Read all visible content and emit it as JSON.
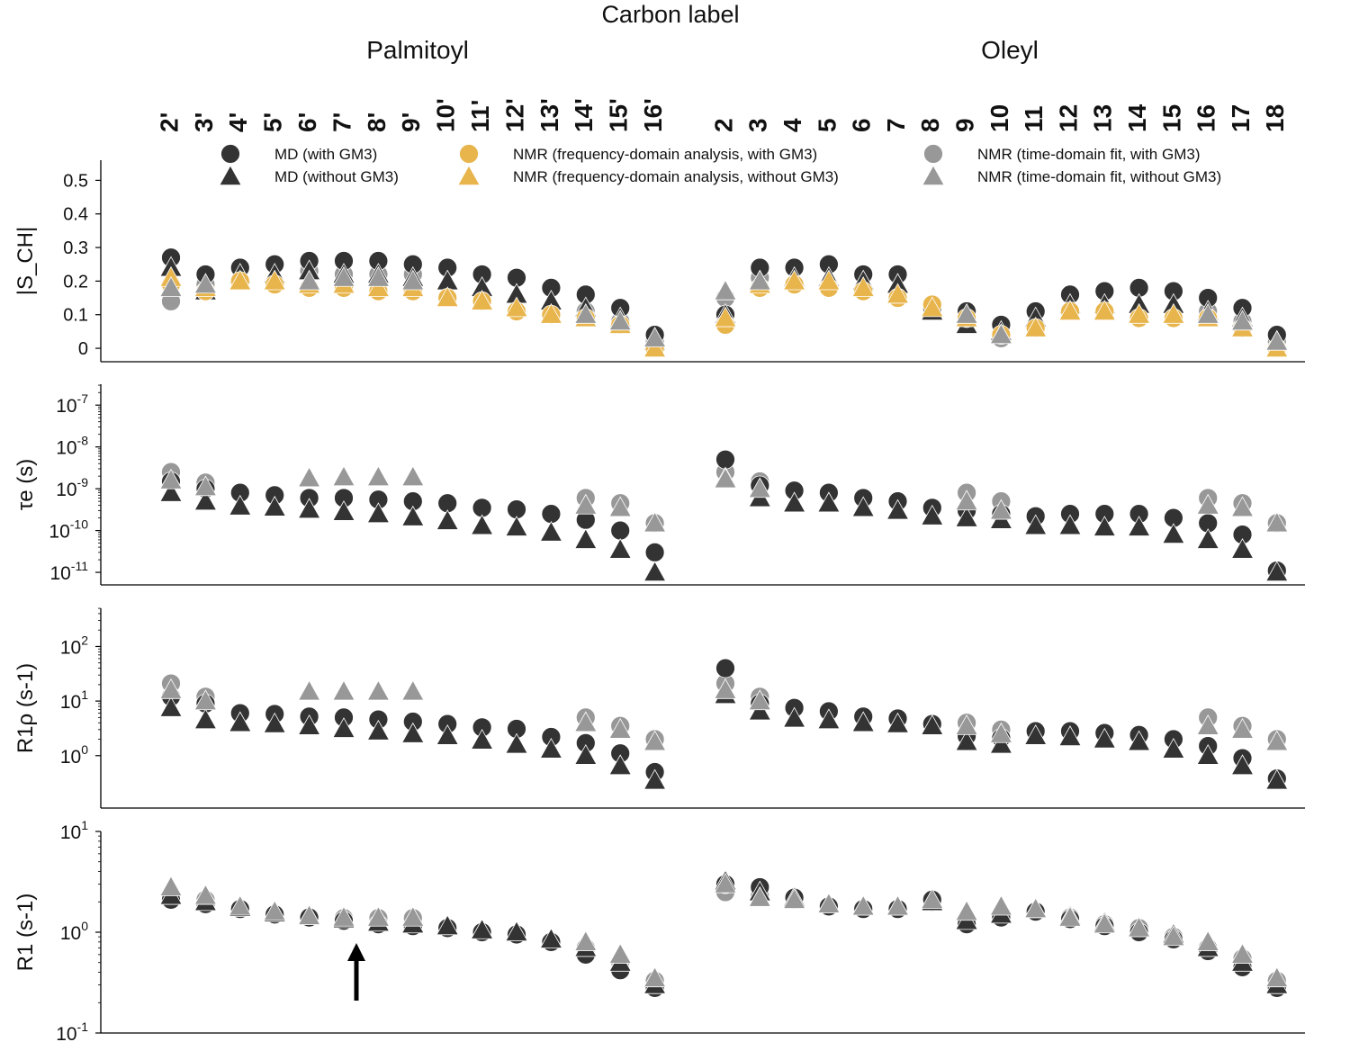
{
  "chart_data": {
    "type": "scatter",
    "top_title": "Carbon label",
    "group_titles": [
      "Palmitoyl",
      "Oleyl"
    ],
    "categories": {
      "palmitoyl": [
        "2'",
        "3'",
        "4'",
        "5'",
        "6'",
        "7'",
        "8'",
        "9'",
        "10'",
        "11'",
        "12'",
        "13'",
        "14'",
        "15'",
        "16'"
      ],
      "oleyl": [
        "2",
        "3",
        "4",
        "5",
        "6",
        "7",
        "8",
        "9",
        "10",
        "11",
        "12",
        "13",
        "14",
        "15",
        "16",
        "17",
        "18"
      ]
    },
    "legend": [
      {
        "label": "MD (with GM3)",
        "marker": "circle",
        "color": "#333333"
      },
      {
        "label": "MD (without GM3)",
        "marker": "triangle",
        "color": "#333333"
      },
      {
        "label": "NMR (frequency-domain analysis, with GM3)",
        "marker": "circle",
        "color": "#E8B54D"
      },
      {
        "label": "NMR (frequency-domain analysis, without GM3)",
        "marker": "triangle",
        "color": "#E8B54D"
      },
      {
        "label": "NMR (time-domain fit, with GM3)",
        "marker": "circle",
        "color": "#989898"
      },
      {
        "label": "NMR (time-domain fit, without GM3)",
        "marker": "triangle",
        "color": "#989898"
      }
    ],
    "panels": [
      {
        "id": "scd",
        "ylabel": "|S_CH|",
        "scale": "linear",
        "ylim": [
          -0.04,
          0.56
        ],
        "yticks": [
          0,
          0.1,
          0.2,
          0.3,
          0.4,
          0.5
        ],
        "yticklabels": [
          "0",
          "0.1",
          "0.2",
          "0.3",
          "0.4",
          "0.5"
        ],
        "series": [
          {
            "name": "NMR (time-domain fit, with GM3)",
            "marker": "circle",
            "color": "#989898",
            "palmitoyl": [
              0.14,
              0.19,
              0.24,
              0.25,
              0.23,
              0.22,
              0.22,
              0.22,
              null,
              null,
              null,
              null,
              0.11,
              0.08,
              0.02
            ],
            "oleyl": [
              0.15,
              0.21,
              null,
              null,
              null,
              null,
              null,
              0.11,
              0.03,
              null,
              null,
              null,
              null,
              null,
              0.11,
              0.08,
              0.02
            ]
          },
          {
            "name": "MD (with GM3)",
            "marker": "circle",
            "color": "#333333",
            "palmitoyl": [
              0.27,
              0.22,
              0.24,
              0.25,
              0.26,
              0.26,
              0.26,
              0.25,
              0.24,
              0.22,
              0.21,
              0.18,
              0.16,
              0.12,
              0.04
            ],
            "oleyl": [
              0.1,
              0.24,
              0.24,
              0.25,
              0.22,
              0.22,
              0.12,
              0.11,
              0.07,
              0.11,
              0.16,
              0.17,
              0.18,
              0.17,
              0.15,
              0.12,
              0.04
            ]
          },
          {
            "name": "MD (without GM3)",
            "marker": "triangle",
            "color": "#333333",
            "palmitoyl": [
              0.24,
              0.17,
              0.22,
              0.22,
              0.23,
              0.22,
              0.22,
              0.21,
              0.2,
              0.18,
              0.16,
              0.14,
              0.12,
              0.09,
              0.02
            ],
            "oleyl": [
              0.1,
              0.2,
              0.21,
              0.21,
              0.2,
              0.19,
              0.11,
              0.07,
              0.05,
              0.09,
              0.13,
              0.13,
              0.13,
              0.13,
              0.11,
              0.09,
              0.02
            ]
          },
          {
            "name": "NMR (frequency-domain analysis, with GM3)",
            "marker": "circle",
            "color": "#E8B54D",
            "palmitoyl": [
              0.19,
              0.17,
              0.2,
              0.19,
              0.18,
              0.18,
              0.17,
              0.17,
              0.15,
              0.14,
              0.11,
              0.1,
              0.09,
              0.07,
              0.0
            ],
            "oleyl": [
              0.07,
              0.18,
              0.19,
              0.18,
              0.17,
              0.15,
              0.13,
              0.09,
              0.04,
              0.06,
              0.11,
              0.11,
              0.09,
              0.09,
              0.09,
              0.06,
              0.0
            ]
          },
          {
            "name": "NMR (frequency-domain analysis, without GM3)",
            "marker": "triangle",
            "color": "#E8B54D",
            "palmitoyl": [
              0.21,
              0.18,
              0.2,
              0.2,
              0.19,
              0.19,
              0.18,
              0.18,
              0.15,
              0.14,
              0.12,
              0.1,
              0.09,
              0.07,
              0.0
            ],
            "oleyl": [
              0.09,
              0.19,
              0.2,
              0.2,
              0.18,
              0.16,
              0.12,
              0.09,
              0.04,
              0.06,
              0.11,
              0.11,
              0.1,
              0.1,
              0.09,
              0.06,
              0.0
            ]
          },
          {
            "name": "NMR (time-domain fit, without GM3)",
            "marker": "triangle",
            "color": "#989898",
            "palmitoyl": [
              0.18,
              0.19,
              null,
              null,
              0.2,
              0.21,
              0.21,
              0.2,
              null,
              null,
              null,
              null,
              0.1,
              0.08,
              0.03
            ],
            "oleyl": [
              0.17,
              0.2,
              null,
              null,
              null,
              null,
              null,
              0.1,
              0.04,
              null,
              null,
              null,
              null,
              null,
              0.1,
              0.08,
              0.02
            ]
          }
        ]
      },
      {
        "id": "tau",
        "ylabel": "τe (s)",
        "scale": "log",
        "ylim_exp": [
          -11.3,
          -6.5
        ],
        "yticks_exp": [
          -11,
          -10,
          -9,
          -8,
          -7
        ],
        "series": [
          {
            "name": "NMR (time-domain fit, with GM3)",
            "marker": "circle",
            "color": "#989898",
            "palmitoyl": [
              2.5e-09,
              1.4e-09,
              null,
              null,
              null,
              null,
              null,
              null,
              null,
              null,
              null,
              null,
              6e-10,
              4.5e-10,
              1.5e-10
            ],
            "oleyl": [
              2.5e-09,
              1.5e-09,
              null,
              null,
              null,
              null,
              null,
              8e-10,
              5e-10,
              null,
              null,
              null,
              null,
              null,
              6e-10,
              4.5e-10,
              1.5e-10
            ]
          },
          {
            "name": "MD (with GM3)",
            "marker": "circle",
            "color": "#333333",
            "palmitoyl": [
              1.5e-09,
              1e-09,
              8e-10,
              7e-10,
              6e-10,
              6e-10,
              5.5e-10,
              5e-10,
              4.5e-10,
              3.5e-10,
              3.2e-10,
              2.5e-10,
              1.8e-10,
              1e-10,
              3e-11
            ],
            "oleyl": [
              5e-09,
              1.2e-09,
              9e-10,
              8e-10,
              6e-10,
              5e-10,
              3.5e-10,
              3e-10,
              2.5e-10,
              2.2e-10,
              2.5e-10,
              2.5e-10,
              2.5e-10,
              2e-10,
              1.5e-10,
              8e-11,
              1.1e-11
            ]
          },
          {
            "name": "MD (without GM3)",
            "marker": "triangle",
            "color": "#333333",
            "palmitoyl": [
              8e-10,
              5e-10,
              3.8e-10,
              3.6e-10,
              3.2e-10,
              2.8e-10,
              2.5e-10,
              2.1e-10,
              1.7e-10,
              1.3e-10,
              1.2e-10,
              9e-11,
              6e-11,
              3.5e-11,
              1e-11
            ],
            "oleyl": [
              1.8e-09,
              6e-10,
              4.5e-10,
              4.5e-10,
              3.5e-10,
              3e-10,
              2.2e-10,
              2e-10,
              1.8e-10,
              1.3e-10,
              1.3e-10,
              1.2e-10,
              1.2e-10,
              8e-11,
              6e-11,
              3.5e-11,
              1e-11
            ]
          },
          {
            "name": "NMR (time-domain fit, without GM3)",
            "marker": "triangle",
            "color": "#989898",
            "palmitoyl": [
              1.6e-09,
              1.1e-09,
              null,
              null,
              1.8e-09,
              1.9e-09,
              1.9e-09,
              1.9e-09,
              null,
              null,
              null,
              null,
              4e-10,
              3.5e-10,
              1.5e-10
            ],
            "oleyl": [
              1.7e-09,
              1e-09,
              null,
              null,
              null,
              null,
              null,
              5e-10,
              3e-10,
              null,
              null,
              null,
              null,
              null,
              4e-10,
              3.5e-10,
              1.5e-10
            ]
          }
        ]
      },
      {
        "id": "r1rho",
        "ylabel": "R1ρ (s-1)",
        "scale": "log",
        "ylim_exp": [
          -0.96,
          2.7
        ],
        "yticks_exp": [
          0,
          1,
          2
        ],
        "series": [
          {
            "name": "NMR (time-domain fit, with GM3)",
            "marker": "circle",
            "color": "#989898",
            "palmitoyl": [
              21,
              12,
              null,
              null,
              null,
              null,
              null,
              null,
              null,
              null,
              null,
              null,
              5,
              3.5,
              2
            ],
            "oleyl": [
              21,
              12,
              null,
              null,
              null,
              null,
              null,
              4,
              3,
              null,
              null,
              null,
              null,
              null,
              5,
              3.5,
              2
            ]
          },
          {
            "name": "MD (with GM3)",
            "marker": "circle",
            "color": "#333333",
            "palmitoyl": [
              12,
              9,
              6,
              5.8,
              5.2,
              5,
              4.6,
              4.2,
              3.8,
              3.3,
              3.1,
              2.2,
              1.7,
              1.1,
              0.5
            ],
            "oleyl": [
              40,
              9,
              7.5,
              6.5,
              5.2,
              4.8,
              3.8,
              2.3,
              2.1,
              2.8,
              2.8,
              2.6,
              2.4,
              2,
              1.5,
              0.9,
              0.38
            ]
          },
          {
            "name": "MD (without GM3)",
            "marker": "triangle",
            "color": "#333333",
            "palmitoyl": [
              7.5,
              4.5,
              4,
              3.8,
              3.5,
              3.1,
              2.8,
              2.5,
              2.3,
              1.9,
              1.6,
              1.3,
              1.0,
              0.65,
              0.35
            ],
            "oleyl": [
              13,
              6.5,
              4.8,
              4.5,
              4,
              3.8,
              3.5,
              1.8,
              1.6,
              2.3,
              2.2,
              2,
              1.8,
              1.3,
              1.0,
              0.65,
              0.35
            ]
          },
          {
            "name": "NMR (time-domain fit, without GM3)",
            "marker": "triangle",
            "color": "#989898",
            "palmitoyl": [
              16,
              10,
              null,
              null,
              15,
              15,
              15,
              15,
              null,
              null,
              null,
              null,
              4,
              3,
              1.8
            ],
            "oleyl": [
              16,
              10,
              null,
              null,
              null,
              null,
              null,
              3.5,
              2.5,
              null,
              null,
              null,
              null,
              null,
              3.5,
              3,
              1.8
            ]
          }
        ]
      },
      {
        "id": "r1",
        "ylabel": "R1 (s-1)",
        "scale": "log",
        "ylim_exp": [
          -1,
          1
        ],
        "yticks_exp": [
          -1,
          0,
          1
        ],
        "series": [
          {
            "name": "NMR (time-domain fit, with GM3)",
            "marker": "circle",
            "color": "#989898",
            "palmitoyl": [
              2.3,
              2.1,
              1.7,
              1.5,
              1.4,
              1.38,
              1.38,
              1.38,
              null,
              null,
              null,
              null,
              0.7,
              0.5,
              0.33
            ],
            "oleyl": [
              2.5,
              2.3,
              2.1,
              1.8,
              1.7,
              1.7,
              2.0,
              1.3,
              1.5,
              1.6,
              1.4,
              1.2,
              1.1,
              0.9,
              0.7,
              0.55,
              0.33
            ]
          },
          {
            "name": "MD (with GM3)",
            "marker": "circle",
            "color": "#333333",
            "palmitoyl": [
              2.1,
              1.9,
              1.7,
              1.5,
              1.4,
              1.3,
              1.2,
              1.15,
              1.1,
              1.0,
              0.95,
              0.8,
              0.6,
              0.42,
              0.28
            ],
            "oleyl": [
              3.0,
              2.8,
              2.2,
              1.8,
              1.7,
              1.7,
              2.1,
              1.2,
              1.4,
              1.6,
              1.35,
              1.15,
              1.0,
              0.85,
              0.65,
              0.45,
              0.28
            ]
          },
          {
            "name": "MD (without GM3)",
            "marker": "triangle",
            "color": "#333333",
            "palmitoyl": [
              2.3,
              2.0,
              1.75,
              1.55,
              1.45,
              1.35,
              1.25,
              1.2,
              1.15,
              1.05,
              1.0,
              0.85,
              0.7,
              0.5,
              0.3
            ],
            "oleyl": [
              3.2,
              2.5,
              2.2,
              1.9,
              1.8,
              1.8,
              2.0,
              1.3,
              1.5,
              1.7,
              1.45,
              1.25,
              1.1,
              0.95,
              0.7,
              0.5,
              0.3
            ]
          },
          {
            "name": "NMR (time-domain fit, without GM3)",
            "marker": "triangle",
            "color": "#989898",
            "palmitoyl": [
              2.8,
              2.3,
              1.8,
              1.6,
              1.45,
              1.4,
              1.4,
              1.4,
              null,
              null,
              null,
              null,
              0.8,
              0.6,
              0.35
            ],
            "oleyl": [
              3.0,
              2.2,
              2.1,
              1.9,
              1.8,
              1.8,
              2.1,
              1.6,
              1.8,
              1.7,
              1.4,
              1.2,
              1.1,
              0.9,
              0.8,
              0.6,
              0.35
            ]
          }
        ]
      }
    ]
  }
}
